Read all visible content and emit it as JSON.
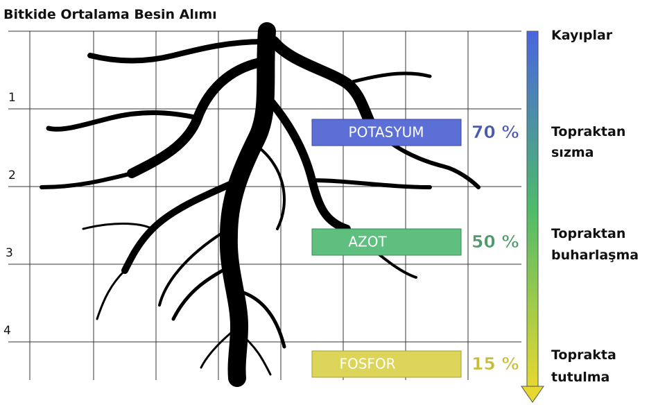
{
  "title": "Bitkide Ortalama Besin Alımı",
  "row_numbers": [
    "1",
    "2",
    "3",
    "4"
  ],
  "nutrients": [
    {
      "name": "POTASYUM",
      "share": "70 %"
    },
    {
      "name": "AZOT",
      "share": "50 %"
    },
    {
      "name": "FOSFOR",
      "share": "15 %"
    }
  ],
  "losses": {
    "title": "Kayıplar",
    "items": [
      [
        "Topraktan",
        "sızma"
      ],
      [
        "Topraktan",
        "buharlaşma"
      ],
      [
        "Toprakta",
        "tutulma"
      ]
    ]
  }
}
